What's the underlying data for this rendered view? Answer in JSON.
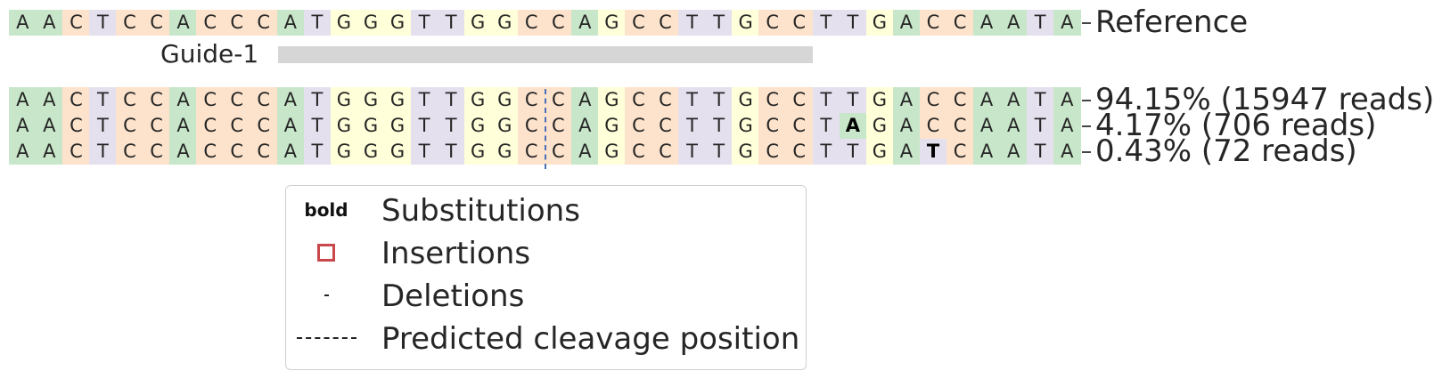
{
  "colors": {
    "A": "#c8e6c9",
    "C": "#fde3cc",
    "G": "#ffffd9",
    "T": "#e5e0ee"
  },
  "reference": {
    "label": "Reference",
    "sequence": "AACTCCACCCATGGGTTGGCCAGCCTTGCCTTGACCAATA"
  },
  "guide": {
    "label": "Guide-1"
  },
  "alleles": [
    {
      "sequence": "AACTCCACCCATGGGTTGGCCAGCCTTGCCTTGACCAATA",
      "label": "94.15% (15947 reads)",
      "substitutions": []
    },
    {
      "sequence": "AACTCCACCCATGGGTTGGCCAGCCTTGCCTAGACCAATA",
      "label": "4.17% (706 reads)",
      "substitutions": [
        31
      ]
    },
    {
      "sequence": "AACTCCACCCATGGGTTGGCCAGCCTTGCCTTGATCAATA",
      "label": "0.43% (72 reads)",
      "substitutions": [
        34
      ]
    }
  ],
  "legend": {
    "bold_symbol": "bold",
    "substitutions": "Substitutions",
    "insertions": "Insertions",
    "deletions": "Deletions",
    "cleavage": "Predicted cleavage position"
  }
}
